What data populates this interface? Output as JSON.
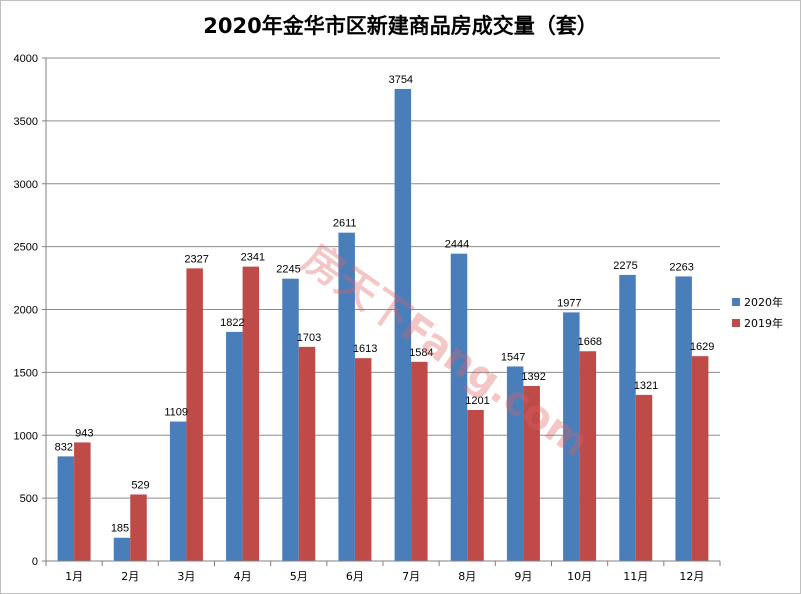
{
  "chart_data": {
    "type": "bar",
    "title": "2020年金华市区新建商品房成交量（套）",
    "categories": [
      "1月",
      "2月",
      "3月",
      "4月",
      "5月",
      "6月",
      "7月",
      "8月",
      "9月",
      "10月",
      "11月",
      "12月"
    ],
    "series": [
      {
        "name": "2020年",
        "color": "#4a7ebb",
        "values": [
          832,
          185,
          1109,
          1822,
          2245,
          2611,
          3754,
          2444,
          1547,
          1977,
          2275,
          2263
        ]
      },
      {
        "name": "2019年",
        "color": "#be4b48",
        "values": [
          943,
          529,
          2327,
          2341,
          1703,
          1613,
          1584,
          1201,
          1392,
          1668,
          1321,
          1629
        ]
      }
    ],
    "ylim": [
      0,
      4000
    ],
    "yticks": [
      0,
      500,
      1000,
      1500,
      2000,
      2500,
      3000,
      3500,
      4000
    ],
    "grid": true,
    "legend": "right"
  },
  "watermark": "房天下Fang.com"
}
